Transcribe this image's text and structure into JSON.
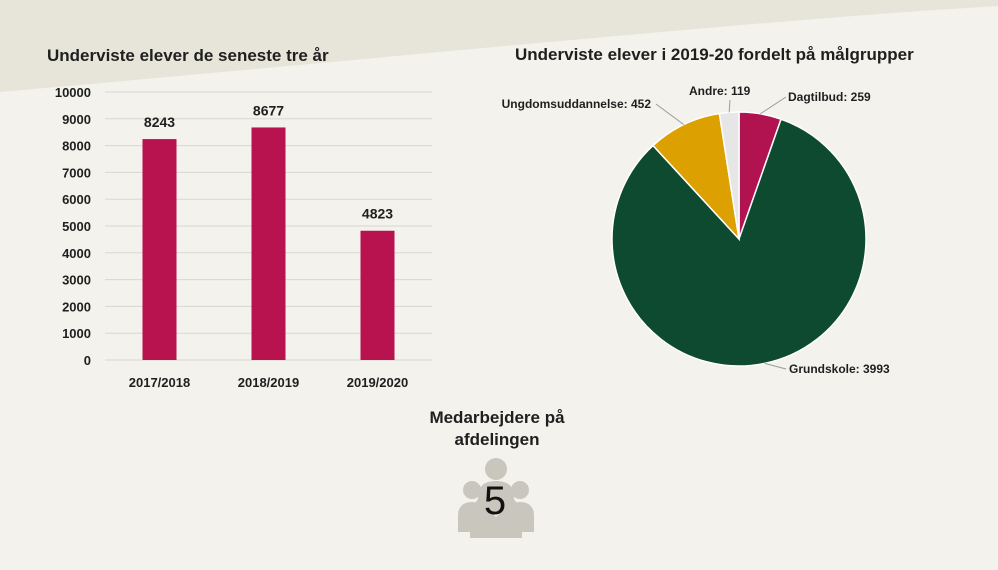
{
  "colors": {
    "background": "#f3f2ec",
    "band": "#e7e5d9",
    "bar": "#b8124f",
    "pie_grundskole": "#0d4a2f",
    "pie_ungdomsuddannelse": "#dca000",
    "pie_andre": "#e6e6e6",
    "pie_dagtilbud": "#b01350",
    "icon": "#c9c6bd"
  },
  "chart_data": [
    {
      "type": "bar",
      "title": "Underviste elever de seneste tre år",
      "categories": [
        "2017/2018",
        "2018/2019",
        "2019/2020"
      ],
      "values": [
        8243,
        8677,
        4823
      ],
      "data_labels": [
        "8243",
        "8677",
        "4823"
      ],
      "ylim": [
        0,
        10000
      ],
      "yticks": [
        "0",
        "1000",
        "2000",
        "3000",
        "4000",
        "5000",
        "6000",
        "7000",
        "8000",
        "9000",
        "10000"
      ],
      "grid": true,
      "xlabel": "",
      "ylabel": ""
    },
    {
      "type": "pie",
      "title": "Underviste elever i 2019-20 fordelt på målgrupper",
      "slices": [
        {
          "label": "Dagtilbud",
          "value": 259,
          "text": "Dagtilbud: 259"
        },
        {
          "label": "Grundskole",
          "value": 3993,
          "text": "Grundskole: 3993"
        },
        {
          "label": "Ungdomsuddannelse",
          "value": 452,
          "text": "Ungdomsuddannelse: 452"
        },
        {
          "label": "Andre",
          "value": 119,
          "text": "Andre: 119"
        }
      ]
    }
  ],
  "staff": {
    "title": "Medarbejdere på afdelingen",
    "count": "5",
    "icon": "people-group-icon"
  }
}
